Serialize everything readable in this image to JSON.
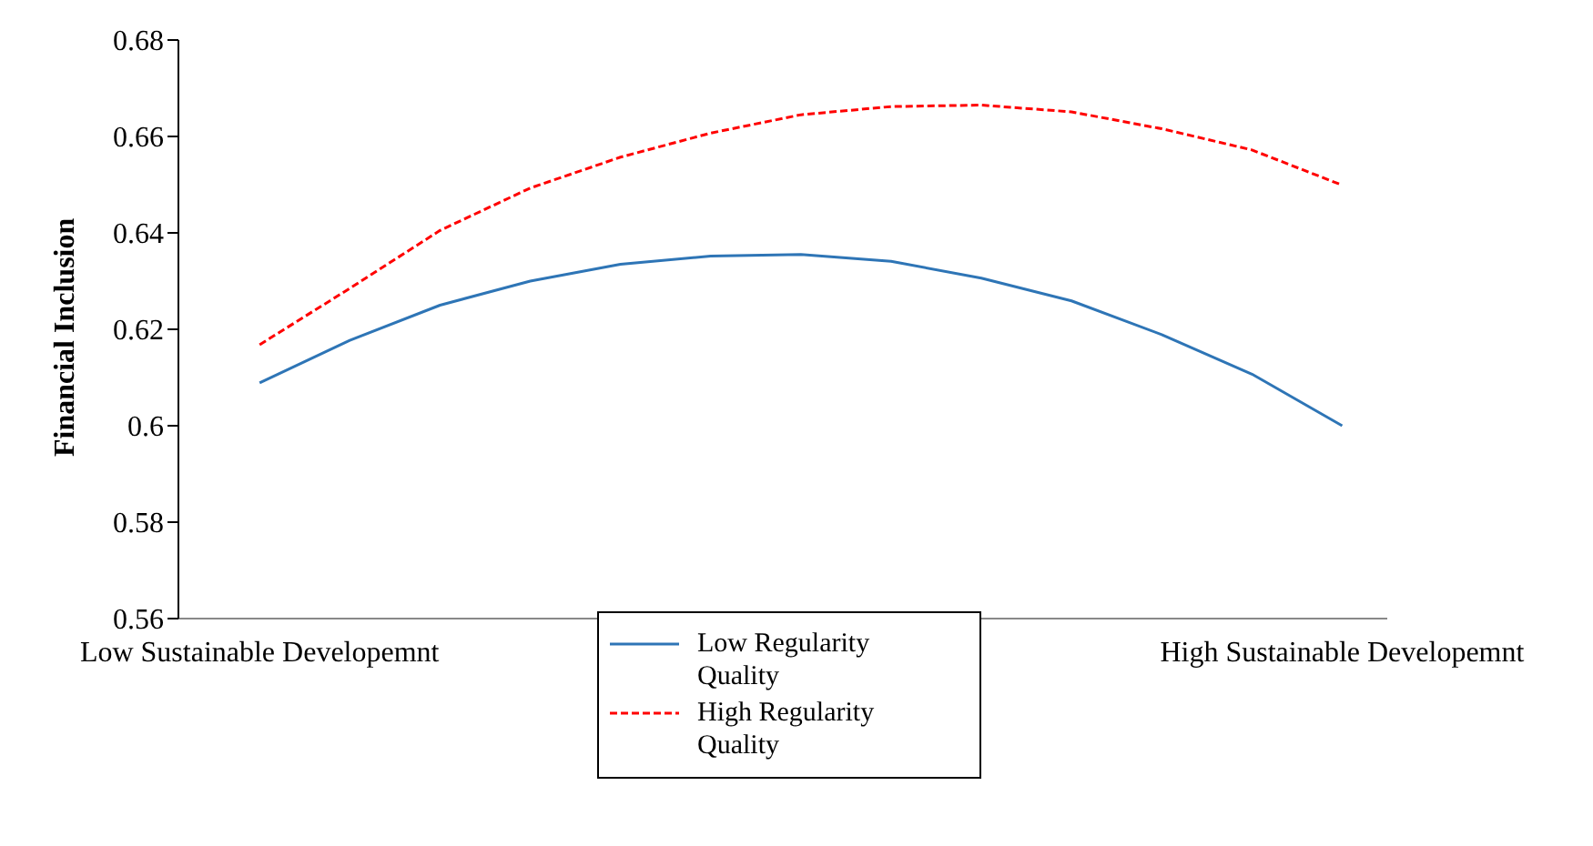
{
  "chart_data": {
    "type": "line",
    "ylabel": "Financial Inclusion",
    "categories": [
      "Low Sustainable Developemnt",
      null,
      null,
      null,
      null,
      null,
      null,
      null,
      null,
      null,
      null,
      null,
      "High Sustainable Developemnt"
    ],
    "series": [
      {
        "name": "Low Regularity Quality",
        "color": "#2e75b6",
        "line_style": "solid",
        "values": [
          0.6089,
          0.6177,
          0.625,
          0.63,
          0.6335,
          0.6352,
          0.6355,
          0.6341,
          0.6306,
          0.6259,
          0.6189,
          0.6107,
          0.6
        ]
      },
      {
        "name": "High Regularity Quality",
        "color": "#ff0000",
        "line_style": "dashed",
        "values": [
          0.6168,
          0.6285,
          0.6405,
          0.6493,
          0.6557,
          0.6607,
          0.6645,
          0.6662,
          0.6665,
          0.6651,
          0.6616,
          0.6572,
          0.6499
        ]
      }
    ],
    "ylim": [
      0.56,
      0.68
    ],
    "yticks": [
      0.56,
      0.58,
      0.6,
      0.62,
      0.64,
      0.66,
      0.68
    ],
    "grid": false,
    "legend": "bottom",
    "marker": "none"
  }
}
